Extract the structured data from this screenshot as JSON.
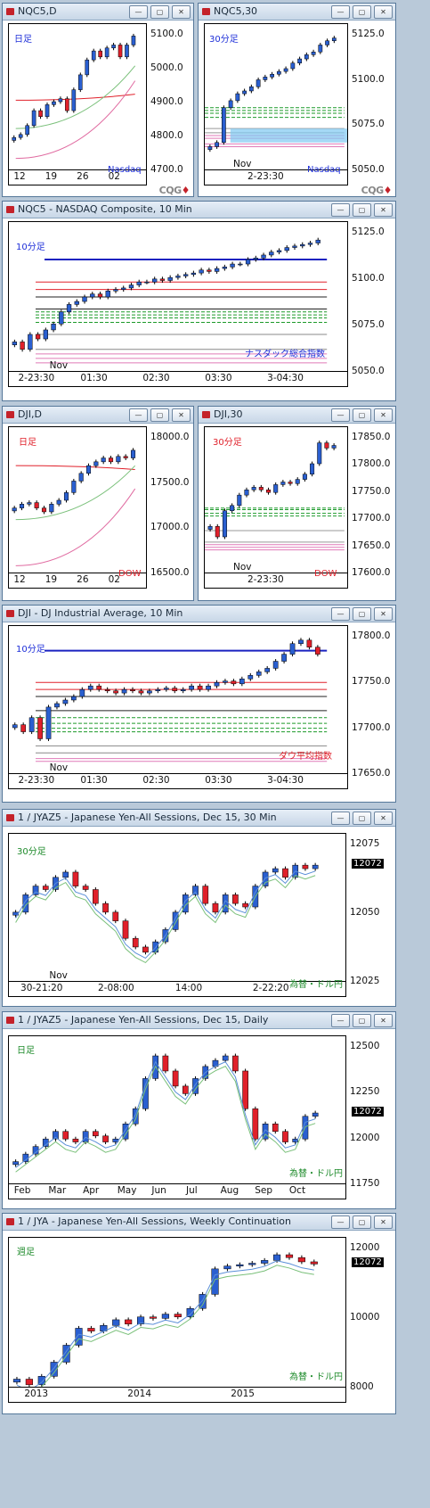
{
  "windows": [
    {
      "id": "w1",
      "title": "NQC5,D",
      "label": "日足",
      "label_color": "#1e2fd8",
      "sub": "Nasdaq",
      "sub_color": "#1e2fd8",
      "yticks": [
        "5100.0",
        "5000.0",
        "4900.0",
        "4800.0",
        "4700.0"
      ],
      "xticks": [
        "12",
        "19",
        "26",
        "02"
      ]
    },
    {
      "id": "w2",
      "title": "NQC5,30",
      "label": "30分足",
      "label_color": "#1e2fd8",
      "sub": "Nasdaq",
      "sub_color": "#1e2fd8",
      "yticks": [
        "5125.0",
        "5100.0",
        "5075.0",
        "5050.0"
      ],
      "xticks": [
        "2-23:30"
      ],
      "nov": "Nov"
    },
    {
      "id": "w3",
      "title": "NQC5 - NASDAQ Composite, 10 Min",
      "label": "10分足",
      "label_color": "#1e2fd8",
      "sub": "ナスダック総合指数",
      "sub_color": "#1e2fd8",
      "yticks": [
        "5125.0",
        "5100.0",
        "5075.0",
        "5050.0"
      ],
      "xticks": [
        "2-23:30",
        "01:30",
        "02:30",
        "03:30",
        "3-04:30"
      ],
      "nov": "Nov"
    },
    {
      "id": "w4",
      "title": "DJI,D",
      "label": "日足",
      "label_color": "#e0202a",
      "sub": "DOW",
      "sub_color": "#e0202a",
      "yticks": [
        "18000.0",
        "17500.0",
        "17000.0",
        "16500.0"
      ],
      "xticks": [
        "12",
        "19",
        "26",
        "02"
      ]
    },
    {
      "id": "w5",
      "title": "DJI,30",
      "label": "30分足",
      "label_color": "#e0202a",
      "sub": "DOW",
      "sub_color": "#e0202a",
      "yticks": [
        "17850.0",
        "17800.0",
        "17750.0",
        "17700.0",
        "17650.0",
        "17600.0"
      ],
      "xticks": [
        "2-23:30"
      ],
      "nov": "Nov"
    },
    {
      "id": "w6",
      "title": "DJI - DJ Industrial Average, 10 Min",
      "label": "10分足",
      "label_color": "#1e2fd8",
      "sub": "ダウ平均指数",
      "sub_color": "#e0202a",
      "yticks": [
        "17800.0",
        "17750.0",
        "17700.0",
        "17650.0"
      ],
      "xticks": [
        "2-23:30",
        "01:30",
        "02:30",
        "03:30",
        "3-04:30"
      ],
      "nov": "Nov"
    },
    {
      "id": "w7",
      "title": "1 / JYAZ5 - Japanese Yen-All Sessions, Dec 15, 30 Min",
      "label": "30分足",
      "label_color": "#1d8a2a",
      "sub": "為替・ドル円",
      "sub_color": "#1d8a2a",
      "yticks": [
        "12075",
        "12050",
        "12025"
      ],
      "xticks": [
        "30-21:20",
        "2-08:00",
        "14:00",
        "2-22:20"
      ],
      "nov": "Nov",
      "price": "12072"
    },
    {
      "id": "w8",
      "title": "1 / JYAZ5 - Japanese Yen-All Sessions, Dec 15, Daily",
      "label": "日足",
      "label_color": "#1d8a2a",
      "sub": "為替・ドル円",
      "sub_color": "#1d8a2a",
      "yticks": [
        "12500",
        "12250",
        "12000",
        "11750"
      ],
      "xticks": [
        "Feb",
        "Mar",
        "Apr",
        "May",
        "Jun",
        "Jul",
        "Aug",
        "Sep",
        "Oct"
      ],
      "price": "12072"
    },
    {
      "id": "w9",
      "title": "1 / JYA - Japanese Yen-All Sessions, Weekly Continuation",
      "label": "週足",
      "label_color": "#1d8a2a",
      "sub": "為替・ドル円",
      "sub_color": "#1d8a2a",
      "yticks": [
        "12000",
        "10000",
        "8000"
      ],
      "xticks": [
        "2013",
        "2014",
        "2015"
      ],
      "price": "12072"
    }
  ],
  "logo": {
    "a": "CQG",
    "b": "♦"
  },
  "colors": {
    "up": "#2a5fd0",
    "down": "#e0202a",
    "ma_red": "#e0202a",
    "ma_blue": "#5a8fd8",
    "ma_green": "#7ac07a"
  },
  "chart_data": [
    {
      "type": "candlestick",
      "window": "NQC5,D",
      "ylim": [
        4680,
        5170
      ],
      "closes": [
        4790,
        4800,
        4830,
        4880,
        4860,
        4900,
        4910,
        4920,
        4880,
        4950,
        5000,
        5050,
        5080,
        5060,
        5090,
        5100,
        5060,
        5100,
        5130
      ],
      "ma_levels": {
        "red": [
          4915,
          4935
        ],
        "green": [
          4820,
          5030
        ],
        "pink": [
          4720,
          4980
        ]
      }
    },
    {
      "type": "candlestick",
      "window": "NQC5,30",
      "ylim": [
        5035,
        5140
      ],
      "closes": [
        5052,
        5055,
        5080,
        5085,
        5090,
        5092,
        5095,
        5100,
        5102,
        5104,
        5106,
        5108,
        5112,
        5115,
        5118,
        5120,
        5125,
        5128,
        5130
      ],
      "hlines": [
        5080,
        5078,
        5076,
        5073,
        5065,
        5062,
        5060,
        5058,
        5054,
        5052
      ],
      "band": [
        5055,
        5065
      ]
    },
    {
      "type": "candlestick",
      "window": "NQC5 - NASDAQ Composite, 10 Min",
      "ylim": [
        5040,
        5140
      ],
      "closes": [
        5060,
        5055,
        5065,
        5062,
        5068,
        5072,
        5080,
        5085,
        5087,
        5090,
        5092,
        5090,
        5094,
        5095,
        5096,
        5098,
        5100,
        5100,
        5102,
        5101,
        5103,
        5104,
        5105,
        5106,
        5108,
        5107,
        5109,
        5110,
        5112,
        5112,
        5115,
        5116,
        5118,
        5120,
        5121,
        5123,
        5124,
        5125,
        5126,
        5128
      ],
      "hlines": {
        "blue": 5115,
        "red": [
          5100,
          5095
        ],
        "dark": [
          5090,
          5082
        ],
        "green": [
          5080,
          5078,
          5076,
          5073
        ],
        "gray": [
          5065,
          5055
        ],
        "pink": [
          5052,
          5049,
          5046
        ]
      }
    },
    {
      "type": "candlestick",
      "window": "DJI,D",
      "ylim": [
        16200,
        18100
      ],
      "closes": [
        17050,
        17100,
        17120,
        17050,
        17000,
        17100,
        17150,
        17250,
        17400,
        17500,
        17600,
        17650,
        17700,
        17650,
        17720,
        17700,
        17800
      ],
      "ma_levels": {
        "red": [
          17600,
          17550
        ],
        "green": [
          16900,
          17600
        ],
        "pink": [
          16300,
          17300
        ]
      }
    },
    {
      "type": "candlestick",
      "window": "DJI,30",
      "ylim": [
        17590,
        17870
      ],
      "closes": [
        17680,
        17660,
        17710,
        17720,
        17740,
        17750,
        17755,
        17750,
        17745,
        17760,
        17765,
        17762,
        17770,
        17780,
        17800,
        17840,
        17830,
        17835
      ],
      "hlines": [
        17715,
        17712,
        17705,
        17700,
        17672,
        17650,
        17645,
        17640,
        17635
      ]
    },
    {
      "type": "candlestick",
      "window": "DJI - DJ Industrial Average, 10 Min",
      "ylim": [
        17640,
        17850
      ],
      "closes": [
        17710,
        17700,
        17720,
        17690,
        17735,
        17740,
        17745,
        17750,
        17760,
        17765,
        17760,
        17758,
        17755,
        17760,
        17758,
        17755,
        17758,
        17760,
        17762,
        17758,
        17760,
        17765,
        17760,
        17765,
        17770,
        17772,
        17768,
        17775,
        17780,
        17785,
        17790,
        17800,
        17810,
        17825,
        17830,
        17820,
        17810
      ],
      "hlines": {
        "blue": 17815,
        "red": [
          17770,
          17760
        ],
        "dark": [
          17750,
          17730
        ],
        "green": [
          17720,
          17712,
          17705,
          17700
        ],
        "gray": [
          17680,
          17670
        ],
        "pink": [
          17662,
          17658
        ]
      }
    },
    {
      "type": "candlestick",
      "window": "1 / JYAZ5 - 30 Min",
      "ylim": [
        12005,
        12090
      ],
      "closes": [
        12045,
        12055,
        12060,
        12058,
        12065,
        12068,
        12060,
        12058,
        12050,
        12045,
        12040,
        12030,
        12025,
        12022,
        12028,
        12035,
        12045,
        12055,
        12060,
        12050,
        12045,
        12055,
        12050,
        12048,
        12060,
        12068,
        12070,
        12065,
        12072,
        12070,
        12072
      ],
      "last": 12072
    },
    {
      "type": "candlestick",
      "window": "1 / JYAZ5 - Daily",
      "ylim": [
        11600,
        12580
      ],
      "closes": [
        11750,
        11800,
        11850,
        11900,
        11950,
        11900,
        11880,
        11950,
        11920,
        11880,
        11900,
        12000,
        12100,
        12300,
        12450,
        12350,
        12250,
        12200,
        12300,
        12380,
        12420,
        12450,
        12350,
        12100,
        11900,
        12000,
        11950,
        11880,
        11900,
        12050,
        12072
      ],
      "last": 12072
    },
    {
      "type": "candlestick",
      "window": "1 / JYA - Weekly",
      "ylim": [
        7700,
        13000
      ],
      "closes": [
        8000,
        7800,
        8100,
        8600,
        9200,
        9800,
        9700,
        9900,
        10100,
        9950,
        10200,
        10150,
        10300,
        10200,
        10500,
        11000,
        11900,
        12000,
        12050,
        12100,
        12200,
        12400,
        12300,
        12150,
        12072
      ],
      "last": 12072
    }
  ]
}
